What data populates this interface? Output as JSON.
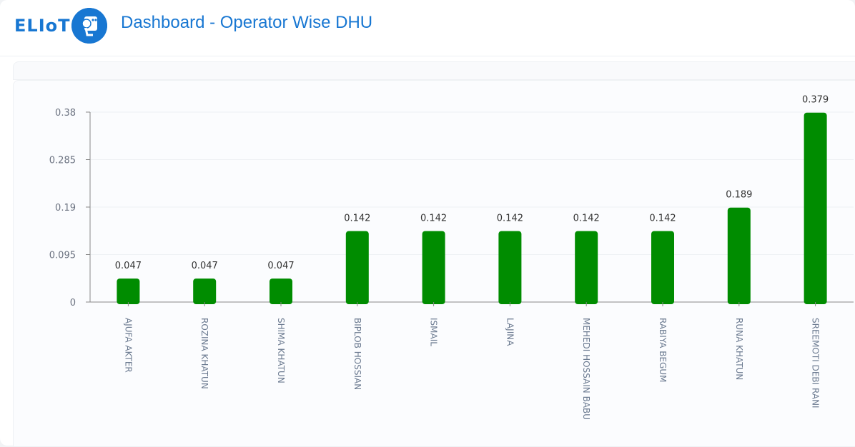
{
  "header": {
    "logo_text": "ELIoT",
    "title": "Dashboard - Operator Wise DHU"
  },
  "colors": {
    "bar": "#008c00",
    "brand": "#1877d2"
  },
  "chart_data": {
    "type": "bar",
    "title": "",
    "xlabel": "",
    "ylabel": "",
    "categories": [
      "AJUFA AKTER",
      "ROZINA KHATUN",
      "SHIMA KHATUN",
      "BIPLOB HOSSIAN",
      "ISMAIL",
      "LAJINA",
      "MEHEDI HOSSAIN BABU",
      "RABIYA BEGUM",
      "RUNA KHATUN",
      "SREEMOTI DEBI RANI"
    ],
    "values": [
      0.047,
      0.047,
      0.047,
      0.142,
      0.142,
      0.142,
      0.142,
      0.142,
      0.189,
      0.379
    ],
    "yticks": [
      0,
      0.095,
      0.19,
      0.285,
      0.38
    ],
    "ylim": [
      0,
      0.38
    ],
    "grid": true,
    "legend": "none"
  }
}
